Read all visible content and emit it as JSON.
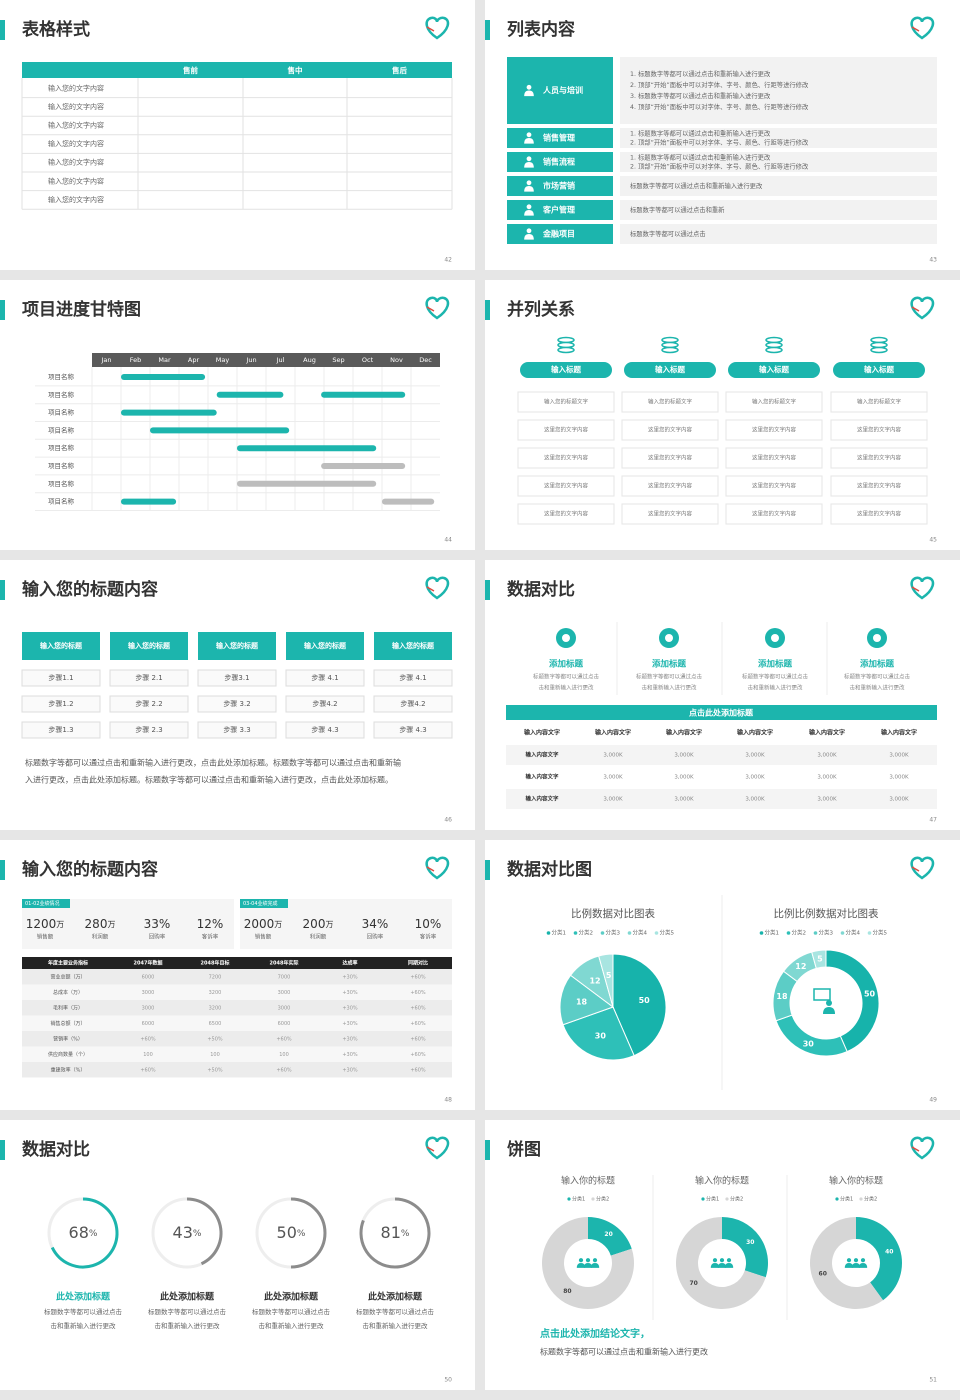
{
  "slides": [
    {
      "title": "表格样式",
      "page": "42",
      "table": {
        "columns": [
          "售前",
          "售中",
          "售后"
        ],
        "rows": [
          "输入您的文字内容",
          "输入您的文字内容",
          "输入您的文字内容",
          "输入您的文字内容",
          "输入您的文字内容",
          "输入您的文字内容",
          "输入您的文字内容"
        ]
      }
    },
    {
      "title": "列表内容",
      "page": "43",
      "items": [
        {
          "label": "人员与培训",
          "lines": [
            "1.  标题数字等都可以通过点击和重新输入进行更改",
            "2.  顶部“开始”面板中可以对字体、字号、颜色、行距等进行修改",
            "3.  标题数字等都可以通过点击和重新输入进行更改",
            "4.  顶部“开始”面板中可以对字体、字号、颜色、行距等进行修改"
          ]
        },
        {
          "label": "销售管理",
          "lines": [
            "1.  标题数字等都可以通过点击和重新输入进行更改",
            "2.  顶部“开始”面板中可以对字体、字号、颜色、行距等进行修改"
          ]
        },
        {
          "label": "销售流程",
          "lines": [
            "1.  标题数字等都可以通过点击和重新输入进行更改",
            "2.  顶部“开始”面板中可以对字体、字号、颜色、行距等进行修改"
          ]
        },
        {
          "label": "市场营销",
          "lines": [
            "标题数字等都可以通过点击和重新输入进行更改"
          ]
        },
        {
          "label": "客户管理",
          "lines": [
            "标题数字等都可以通过点击和重新"
          ]
        },
        {
          "label": "金融项目",
          "lines": [
            "标题数字等都可以通过点击"
          ]
        }
      ]
    },
    {
      "title": "项目进度甘特图",
      "page": "44",
      "months": [
        "Jan",
        "Feb",
        "Mar",
        "Apr",
        "May",
        "Jun",
        "Jul",
        "Aug",
        "Sep",
        "Oct",
        "Nov",
        "Dec"
      ],
      "tasks": [
        {
          "name": "项目名称",
          "bars": [
            {
              "start": 1,
              "end": 3.9,
              "color": "#1cb5ad"
            }
          ]
        },
        {
          "name": "项目名称",
          "bars": [
            {
              "start": 4.3,
              "end": 6.6,
              "color": "#1cb5ad"
            },
            {
              "start": 7.9,
              "end": 10.8,
              "color": "#1cb5ad"
            }
          ]
        },
        {
          "name": "项目名称",
          "bars": [
            {
              "start": 1,
              "end": 4.3,
              "color": "#1cb5ad"
            }
          ]
        },
        {
          "name": "项目名称",
          "bars": [
            {
              "start": 2,
              "end": 6.8,
              "color": "#1cb5ad"
            }
          ]
        },
        {
          "name": "项目名称",
          "bars": [
            {
              "start": 5,
              "end": 9.8,
              "color": "#1cb5ad"
            }
          ]
        },
        {
          "name": "项目名称",
          "bars": [
            {
              "start": 7.9,
              "end": 10.8,
              "color": "#bdbdbd"
            }
          ]
        },
        {
          "name": "项目名称",
          "bars": [
            {
              "start": 5,
              "end": 9.8,
              "color": "#bdbdbd"
            }
          ]
        },
        {
          "name": "项目名称",
          "bars": [
            {
              "start": 1,
              "end": 2.9,
              "color": "#1cb5ad"
            },
            {
              "start": 10,
              "end": 11.8,
              "color": "#bdbdbd"
            }
          ]
        }
      ]
    },
    {
      "title": "并列关系",
      "page": "45",
      "columns": [
        {
          "heading": "输入标题",
          "cells": [
            "输入您的标题文字",
            "这里您的文字内容",
            "这里您的文字内容",
            "这里您的文字内容",
            "这里您的文字内容"
          ]
        },
        {
          "heading": "输入标题",
          "cells": [
            "输入您的标题文字",
            "这里您的文字内容",
            "这里您的文字内容",
            "这里您的文字内容",
            "这里您的文字内容"
          ]
        },
        {
          "heading": "输入标题",
          "cells": [
            "输入您的标题文字",
            "这里您的文字内容",
            "这里您的文字内容",
            "这里您的文字内容",
            "这里您的文字内容"
          ]
        },
        {
          "heading": "输入标题",
          "cells": [
            "输入您的标题文字",
            "这里您的文字内容",
            "这里您的文字内容",
            "这里您的文字内容",
            "这里您的文字内容"
          ]
        }
      ]
    },
    {
      "title": "输入您的标题内容",
      "page": "46",
      "steps": [
        {
          "heading": "输入您的标题",
          "items": [
            "步骤1.1",
            "步骤1.2",
            "步骤1.3"
          ]
        },
        {
          "heading": "输入您的标题",
          "items": [
            "步骤 2.1",
            "步骤 2.2",
            "步骤 2.3"
          ]
        },
        {
          "heading": "输入您的标题",
          "items": [
            "步骤3.1",
            "步骤 3.2",
            "步骤 3.3"
          ]
        },
        {
          "heading": "输入您的标题",
          "items": [
            "步骤 4.1",
            "步骤4.2",
            "步骤 4.3"
          ]
        },
        {
          "heading": "输入您的标题",
          "items": [
            "步骤 4.1",
            "步骤4.2",
            "步骤 4.3"
          ]
        }
      ],
      "paragraph": [
        "标题数字等都可以通过点击和重新输入进行更改，点击此处添加标题。标题数字等都可以通过点击和重新输",
        "入进行更改，点击此处添加标题。标题数字等都可以通过点击和重新输入进行更改，点击此处添加标题。"
      ]
    },
    {
      "title": "数据对比",
      "page": "47",
      "features": [
        {
          "heading": "添加标题",
          "text": [
            "标题数字等都可以通过点击",
            "击和重新输入进行更改"
          ]
        },
        {
          "heading": "添加标题",
          "text": [
            "标题数字等都可以通过点击",
            "击和重新输入进行更改"
          ]
        },
        {
          "heading": "添加标题",
          "text": [
            "标题数字等都可以通过点击",
            "击和重新输入进行更改"
          ]
        },
        {
          "heading": "添加标题",
          "text": [
            "标题数字等都可以通过点击",
            "击和重新输入进行更改"
          ]
        }
      ],
      "banner": "点击此处添加标题",
      "grid": {
        "header": [
          "输入内容文字",
          "输入内容文字",
          "输入内容文字",
          "输入内容文字",
          "输入内容文字",
          "输入内容文字"
        ],
        "rows": [
          [
            "输入内容文字",
            "3,000K",
            "3,000K",
            "3,000K",
            "3,000K",
            "3,000K"
          ],
          [
            "输入内容文字",
            "3,000K",
            "3,000K",
            "3,000K",
            "3,000K",
            "3,000K"
          ],
          [
            "输入内容文字",
            "3,000K",
            "3,000K",
            "3,000K",
            "3,000K",
            "3,000K"
          ]
        ]
      }
    },
    {
      "title": "输入您的标题内容",
      "page": "48",
      "groups": [
        {
          "tag": "01-02业绩情况",
          "kpis": [
            {
              "value": "1200",
              "unit": "万",
              "label": "销售额"
            },
            {
              "value": "280",
              "unit": "万",
              "label": "利润额"
            },
            {
              "value": "33%",
              "unit": "",
              "label": "回购率"
            },
            {
              "value": "12%",
              "unit": "",
              "label": "客诉率"
            }
          ]
        },
        {
          "tag": "03-04业绩完成",
          "kpis": [
            {
              "value": "2000",
              "unit": "万",
              "label": "销售额"
            },
            {
              "value": "200",
              "unit": "万",
              "label": "利润额"
            },
            {
              "value": "34%",
              "unit": "",
              "label": "回购率"
            },
            {
              "value": "10%",
              "unit": "",
              "label": "客诉率"
            }
          ]
        }
      ],
      "sheet": {
        "header": [
          "年度主要业务指标",
          "2047年数据",
          "2048年目标",
          "2048年实际",
          "达成率",
          "同期对比"
        ],
        "rows": [
          [
            "营业总额（万）",
            "6000",
            "7200",
            "7000",
            "+30%",
            "+60%"
          ],
          [
            "总成本（万）",
            "3000",
            "3200",
            "3000",
            "+30%",
            "+60%"
          ],
          [
            "毛利率（万）",
            "3000",
            "3200",
            "3000",
            "+30%",
            "+60%"
          ],
          [
            "销售总额（万）",
            "6000",
            "6500",
            "6000",
            "+30%",
            "+60%"
          ],
          [
            "营销率（%）",
            "+60%",
            "+50%",
            "+60%",
            "+30%",
            "+60%"
          ],
          [
            "供应商数量（个）",
            "100",
            "100",
            "100",
            "+30%",
            "+60%"
          ],
          [
            "重建效率（%）",
            "+60%",
            "+50%",
            "+60%",
            "+30%",
            "+60%"
          ]
        ]
      }
    },
    {
      "title": "数据对比图",
      "page": "49",
      "pies": [
        {
          "title": "比例数据对比图表",
          "categories": [
            "分类1",
            "分类2",
            "分类3",
            "分类4",
            "分类5"
          ],
          "values": [
            50,
            30,
            18,
            12,
            5
          ],
          "colors": [
            "#17b3ab",
            "#2ec0b8",
            "#5ccdc6",
            "#80d8d2",
            "#a8e5e1"
          ],
          "donut": false
        },
        {
          "title": "比例比例数据对比图表",
          "categories": [
            "分类1",
            "分类2",
            "分类3",
            "分类4",
            "分类5"
          ],
          "values": [
            50,
            30,
            18,
            12,
            5
          ],
          "colors": [
            "#17b3ab",
            "#2ec0b8",
            "#5ccdc6",
            "#80d8d2",
            "#a8e5e1"
          ],
          "donut": true
        }
      ]
    },
    {
      "title": "数据对比",
      "page": "50",
      "rings": [
        {
          "value": 68,
          "unit": "%",
          "heading": "此处添加标题",
          "text": [
            "标题数字等都可以通过点击",
            "击和重新输入进行更改"
          ],
          "color": "#1cb5ad"
        },
        {
          "value": 43,
          "unit": "%",
          "heading": "此处添加标题",
          "text": [
            "标题数字等都可以通过点击",
            "击和重新输入进行更改"
          ],
          "color": "#8c8c8c"
        },
        {
          "value": 50,
          "unit": "%",
          "heading": "此处添加标题",
          "text": [
            "标题数字等都可以通过点击",
            "击和重新输入进行更改"
          ],
          "color": "#8c8c8c"
        },
        {
          "value": 81,
          "unit": "%",
          "heading": "此处添加标题",
          "text": [
            "标题数字等都可以通过点击",
            "击和重新输入进行更改"
          ],
          "color": "#8c8c8c"
        }
      ]
    },
    {
      "title": "饼图",
      "page": "51",
      "donuts": [
        {
          "title": "输入你的标题",
          "categories": [
            "分类1",
            "分类2"
          ],
          "values": [
            20,
            80
          ],
          "colors": [
            "#1cb5ad",
            "#d6d6d6"
          ]
        },
        {
          "title": "输入你的标题",
          "categories": [
            "分类1",
            "分类2"
          ],
          "values": [
            30,
            70
          ],
          "colors": [
            "#1cb5ad",
            "#d6d6d6"
          ]
        },
        {
          "title": "输入你的标题",
          "categories": [
            "分类1",
            "分类2"
          ],
          "values": [
            40,
            60
          ],
          "colors": [
            "#1cb5ad",
            "#d6d6d6"
          ]
        }
      ],
      "conclusion": "点击此处添加结论文字，",
      "note": "标题数字等都可以通过点击和重新输入进行更改"
    }
  ]
}
